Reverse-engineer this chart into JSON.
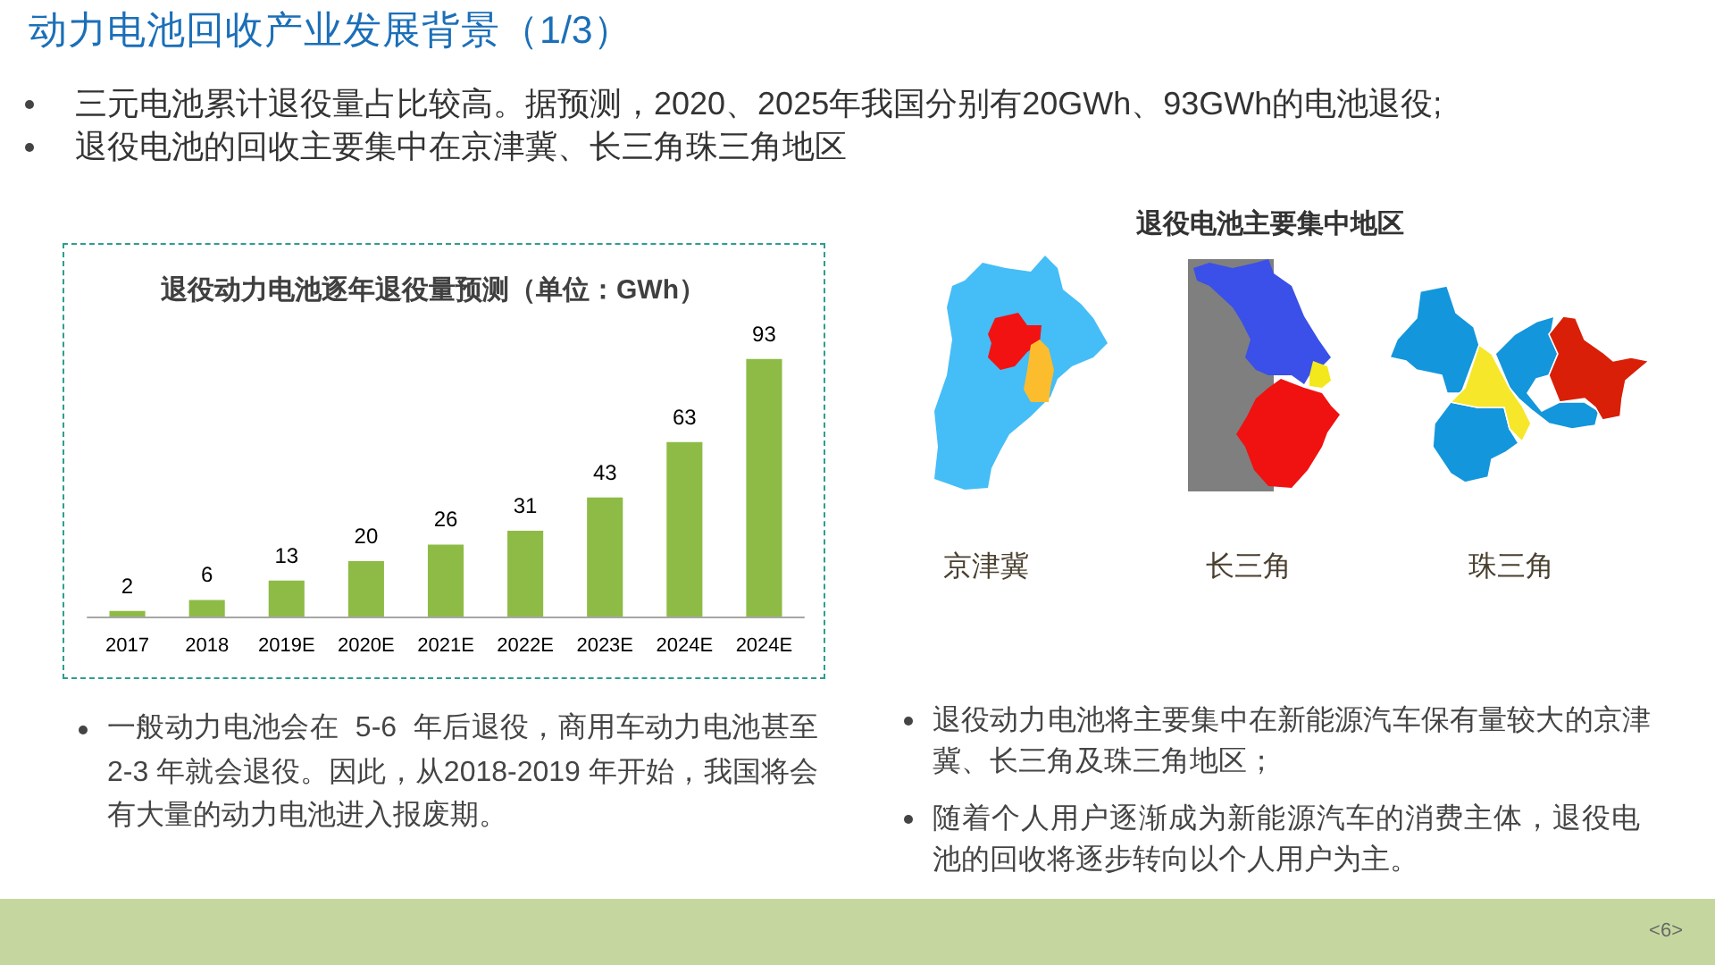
{
  "chart_data": {
    "type": "bar",
    "title": "退役动力电池逐年退役量预测（单位：GWh）",
    "categories": [
      "2017",
      "2018",
      "2019E",
      "2020E",
      "2021E",
      "2022E",
      "2023E",
      "2024E",
      "2024E"
    ],
    "values": [
      2,
      6,
      13,
      20,
      26,
      31,
      43,
      63,
      93
    ],
    "color": "#8dbb45",
    "data_labels": true,
    "annotations": [
      "动力电池回收产业发展背景（1/3）",
      "三元电池累计退役量占比较高。据预测，2020、2025年我国分别有20GWh、93GWh的电池退役;",
      "退役电池的回收主要集中在京津冀、长三角珠三角地区",
      "退役电池主要集中地区",
      "京津冀",
      "长三角",
      "珠三角",
      "一般动力电池会在  5-6  年后退役，商用车动力电池甚至2-3 年就会退役。因此，从2018-2019 年开始，我国将会有大量的动力电池进入报废期。",
      "退役动力电池将主要集中在新能源汽车保有量较大的京津冀、长三角及珠三角地区；",
      "随着个人用户逐渐成为新能源汽车的消费主体，退役电池的回收将逐步转向以个人用户为主。",
      "<6>"
    ]
  }
}
